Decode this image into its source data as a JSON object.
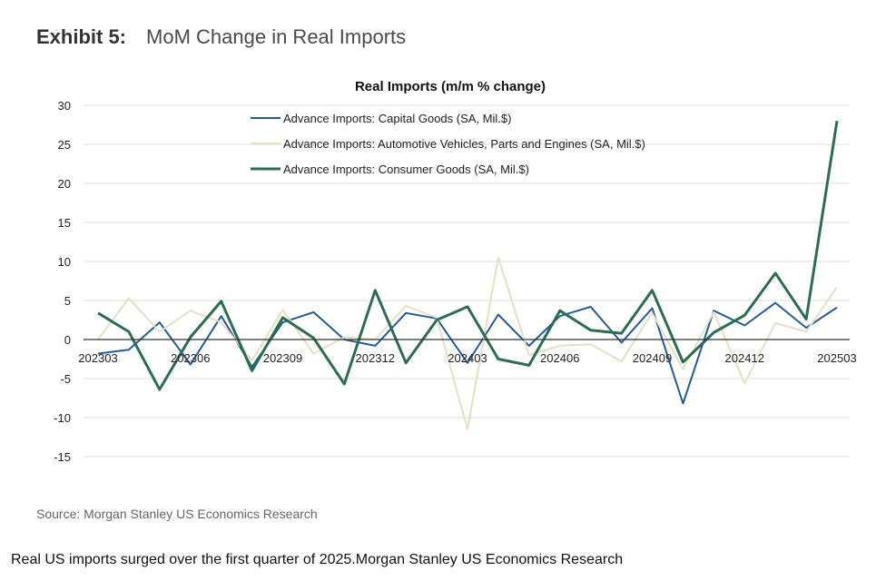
{
  "exhibit": {
    "label": "Exhibit 5:",
    "title": "MoM Change in Real Imports"
  },
  "source": "Source: Morgan Stanley US Economics Research",
  "caption": "Real US imports surged over the first quarter of 2025.Morgan Stanley US Economics Research",
  "chart_data": {
    "type": "line",
    "title": "Real Imports (m/m % change)",
    "xlabel": "",
    "ylabel": "",
    "ylim": [
      -15,
      30
    ],
    "yticks": [
      30,
      25,
      20,
      15,
      10,
      5,
      0,
      -5,
      -10,
      -15
    ],
    "grid": true,
    "legend_position": "top",
    "x": [
      "202303",
      "202304",
      "202305",
      "202306",
      "202307",
      "202308",
      "202309",
      "202310",
      "202311",
      "202312",
      "202401",
      "202402",
      "202403",
      "202404",
      "202405",
      "202406",
      "202407",
      "202408",
      "202409",
      "202410",
      "202411",
      "202412",
      "202501",
      "202502",
      "202503"
    ],
    "x_tick_labels": [
      "202303",
      "202306",
      "202309",
      "202312",
      "202403",
      "202406",
      "202409",
      "202412",
      "202503"
    ],
    "series": [
      {
        "name": "Advance Imports: Capital Goods (SA, Mil.$)",
        "color": "#1f5c99",
        "width": 2,
        "values": [
          -1.8,
          -1.3,
          2.2,
          -3.2,
          3.0,
          -3.5,
          2.2,
          3.5,
          0.0,
          -0.8,
          3.4,
          2.7,
          -3.0,
          3.2,
          -0.8,
          3.0,
          4.2,
          -0.4,
          4.0,
          -8.2,
          3.7,
          1.8,
          4.7,
          1.5,
          4.1
        ]
      },
      {
        "name": "Advance Imports: Automotive Vehicles, Parts and Engines (SA, Mil.$)",
        "color": "#e6dfc3",
        "width": 2,
        "values": [
          0.0,
          5.3,
          1.0,
          3.7,
          2.2,
          -2.7,
          3.8,
          -1.8,
          0.3,
          0.0,
          4.3,
          2.8,
          -11.5,
          10.5,
          -2.0,
          -0.8,
          -0.6,
          -2.8,
          3.4,
          -3.8,
          3.5,
          -5.6,
          2.1,
          1.0,
          6.7
        ]
      },
      {
        "name": "Advance Imports: Consumer Goods (SA, Mil.$)",
        "color": "#2a6e4f",
        "width": 3,
        "values": [
          3.4,
          1.0,
          -6.4,
          0.3,
          4.9,
          -4.0,
          2.8,
          0.2,
          -5.7,
          6.3,
          -3.0,
          2.5,
          4.2,
          -2.5,
          -3.3,
          3.7,
          1.2,
          0.8,
          6.3,
          -2.9,
          0.9,
          3.1,
          8.5,
          2.6,
          28.0
        ]
      }
    ]
  }
}
